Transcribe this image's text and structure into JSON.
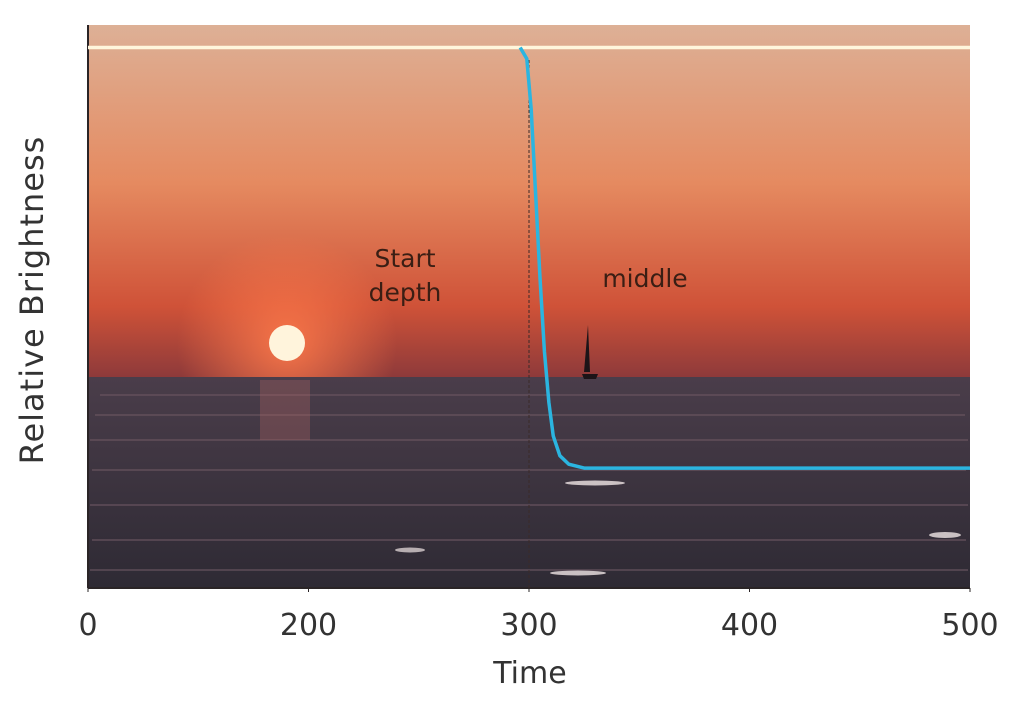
{
  "chart_data": {
    "type": "line",
    "x_label": "Time",
    "y_label": "Relative Brightness",
    "xlim": [
      100,
      500
    ],
    "xticks": [
      {
        "value": 100,
        "label": "0"
      },
      200,
      300,
      400,
      500
    ],
    "ylim": [
      0,
      1
    ],
    "vline": 300,
    "annotations": [
      "Start depth",
      "middle"
    ],
    "series": [
      {
        "color": "#fff6dc",
        "x": [
          100,
          500
        ],
        "values": [
          0.96,
          0.96
        ]
      },
      {
        "color": "#2bb5e0",
        "x": [
          296,
          299,
          301,
          303,
          305,
          307,
          309,
          311,
          314,
          318,
          325,
          340,
          500
        ],
        "values": [
          0.96,
          0.94,
          0.85,
          0.7,
          0.55,
          0.42,
          0.33,
          0.27,
          0.235,
          0.22,
          0.213,
          0.213,
          0.213
        ]
      }
    ]
  }
}
